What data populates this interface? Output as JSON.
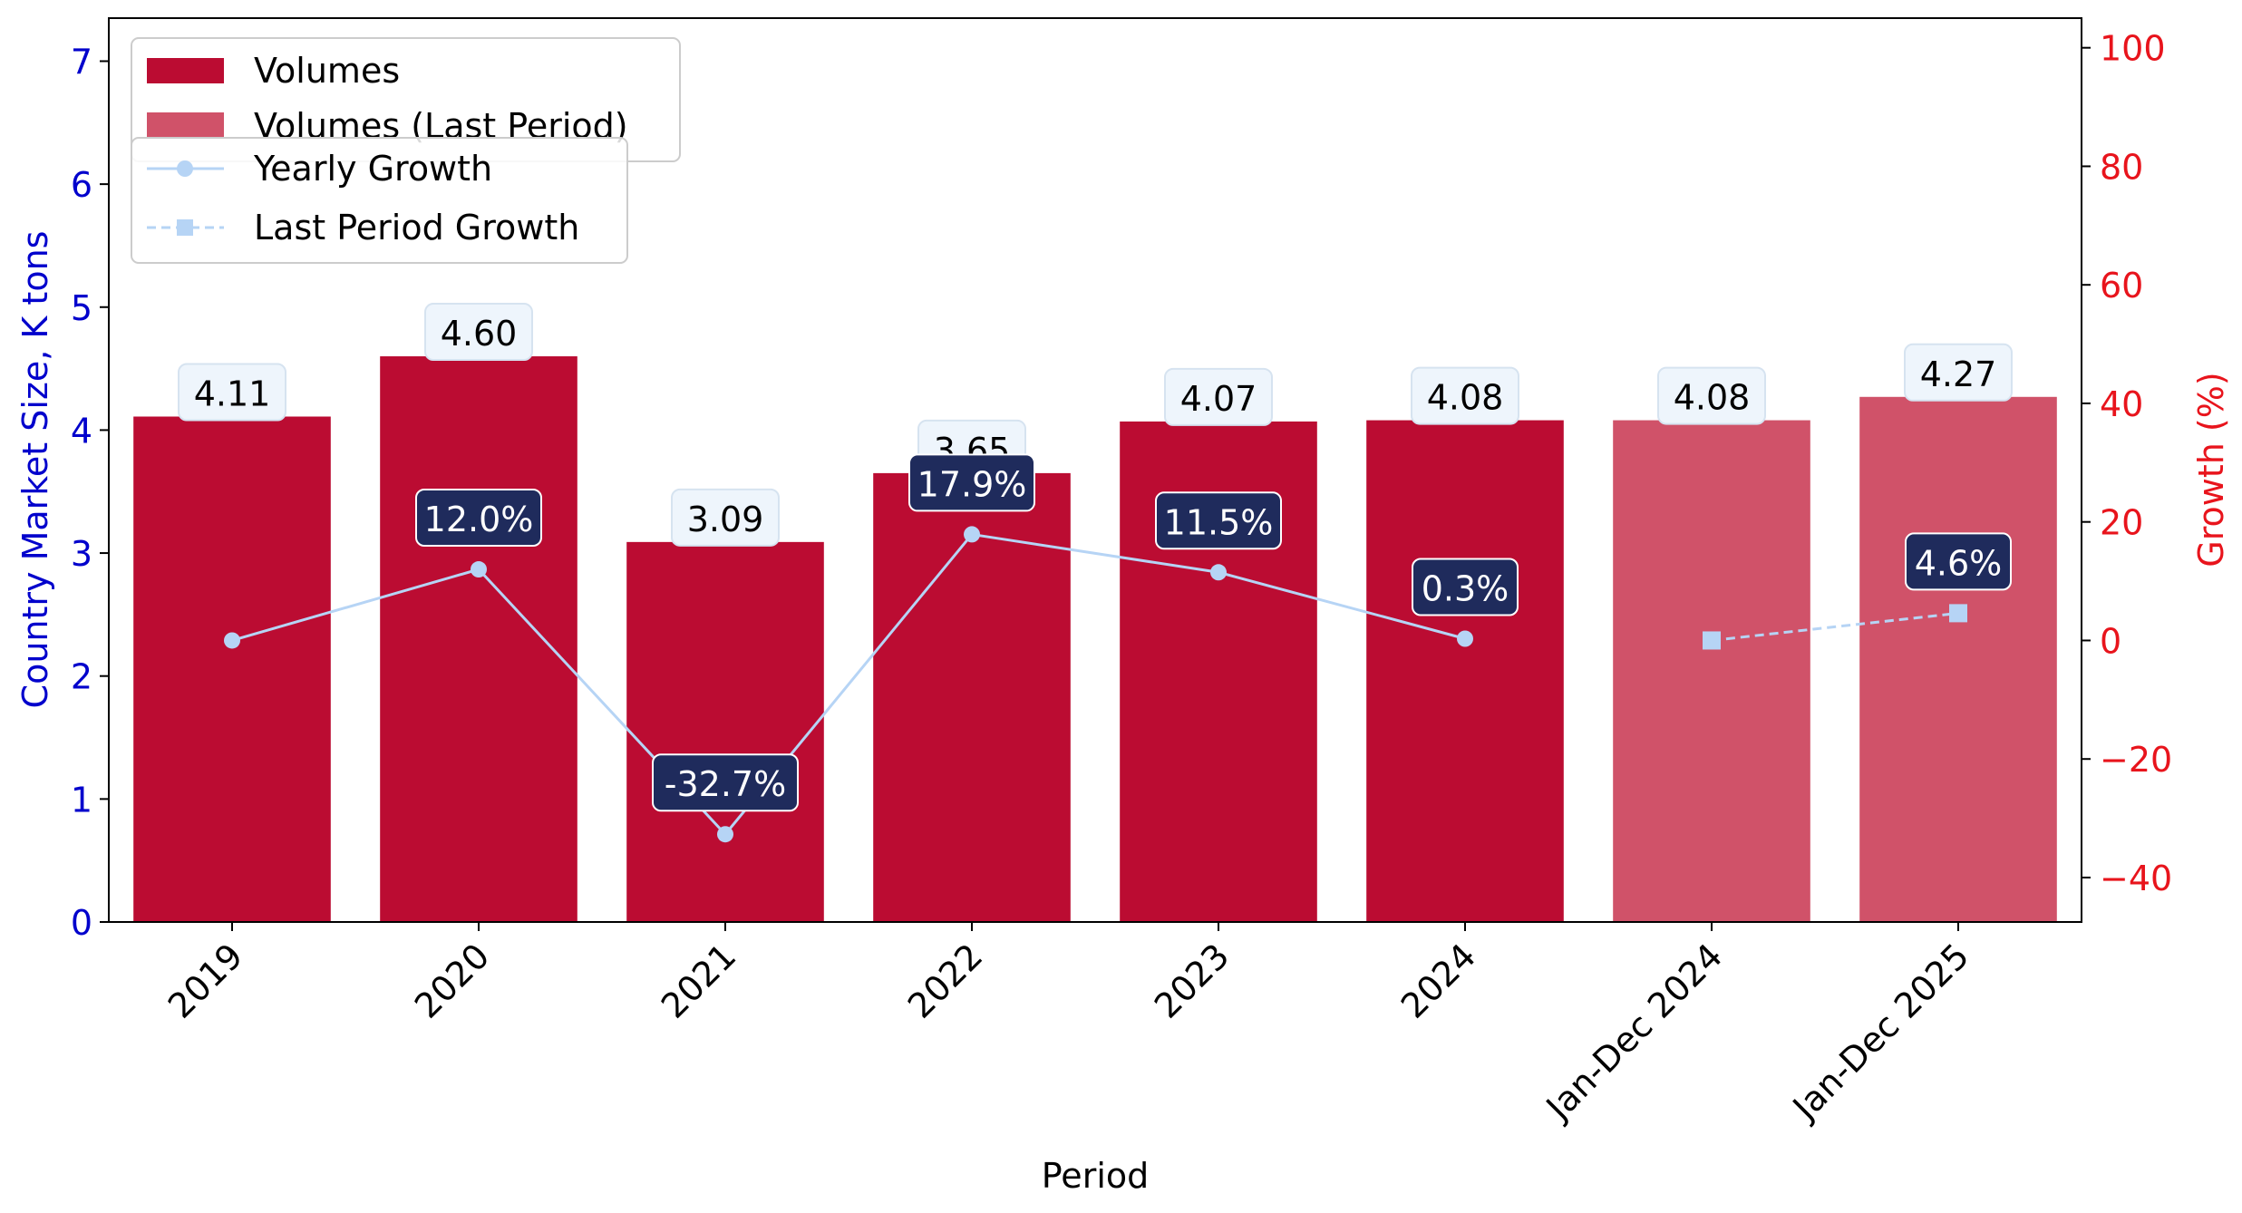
{
  "chart_data": {
    "type": "bar",
    "categories": [
      "2019",
      "2020",
      "2021",
      "2022",
      "2023",
      "2024",
      "Jan-Dec 2024",
      "Jan-Dec 2025"
    ],
    "series": [
      {
        "name": "Volumes",
        "values": [
          4.11,
          4.6,
          3.09,
          3.65,
          4.07,
          4.08,
          null,
          null
        ],
        "color": "#bb0c32"
      },
      {
        "name": "Volumes (Last Period)",
        "values": [
          null,
          null,
          null,
          null,
          null,
          null,
          4.08,
          4.27
        ],
        "color": "#d05269"
      }
    ],
    "growth_series": [
      {
        "name": "Yearly Growth",
        "axis": "right",
        "style": "solid",
        "marker": "circle",
        "color": "#b6d4f5",
        "values": [
          0.0,
          12.0,
          -32.7,
          17.9,
          11.5,
          0.3,
          null,
          null
        ]
      },
      {
        "name": "Last Period Growth",
        "axis": "right",
        "style": "dashed",
        "marker": "square",
        "color": "#b6d4f5",
        "values": [
          null,
          null,
          null,
          null,
          null,
          null,
          0.0,
          4.6
        ]
      }
    ],
    "bar_labels": [
      "4.11",
      "4.60",
      "3.09",
      "3.65",
      "4.07",
      "4.08",
      "4.08",
      "4.27"
    ],
    "growth_labels": [
      {
        "index": 1,
        "text": "12.0%"
      },
      {
        "index": 2,
        "text": "-32.7%"
      },
      {
        "index": 3,
        "text": "17.9%"
      },
      {
        "index": 4,
        "text": "11.5%"
      },
      {
        "index": 5,
        "text": "0.3%"
      },
      {
        "index": 7,
        "text": "4.6%"
      }
    ],
    "xlabel": "Period",
    "ylabel": "Country Market Size, K tons",
    "ylabel_right": "Growth (%)",
    "ylim": [
      0,
      7.35
    ],
    "ylim_right": [
      -47.5,
      105
    ],
    "yticks": [
      0,
      1,
      2,
      3,
      4,
      5,
      6,
      7
    ],
    "yticks_right": [
      -40,
      -20,
      0,
      20,
      40,
      60,
      80,
      100
    ],
    "left_axis_color": "#0000cc",
    "right_axis_color": "#e8141c",
    "growth_label_bg": "#1f2b5c",
    "bar_label_bg": "#eef5fc",
    "legend_placement": "upper-left",
    "grid": false
  }
}
